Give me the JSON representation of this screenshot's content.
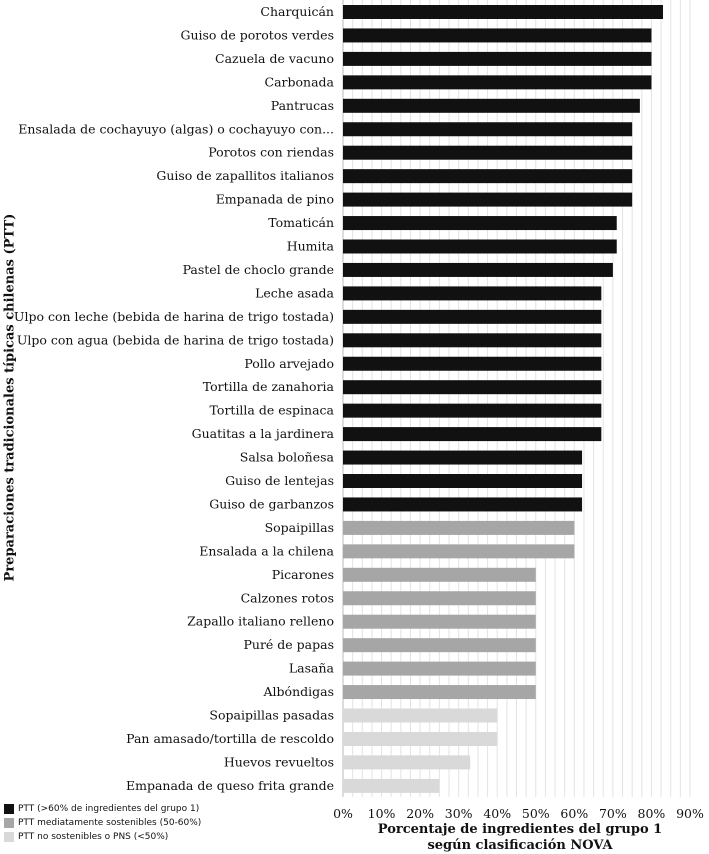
{
  "chart_data": {
    "type": "bar",
    "orientation": "horizontal",
    "categories": [
      "Charquicán",
      "Guiso de porotos verdes",
      "Cazuela de vacuno",
      "Carbonada",
      "Pantrucas",
      "Ensalada de cochayuyo (algas) o cochayuyo con...",
      "Porotos con riendas",
      "Guiso de zapallitos italianos",
      "Empanada de pino",
      "Tomaticán",
      "Humita",
      "Pastel de choclo grande",
      "Leche asada",
      "Ulpo con leche (bebida de harina de trigo tostada)",
      "Ulpo con agua (bebida de harina de trigo tostada)",
      "Pollo arvejado",
      "Tortilla de zanahoria",
      "Tortilla de espinaca",
      "Guatitas a la jardinera",
      "Salsa boloñesa",
      "Guiso de lentejas",
      "Guiso de garbanzos",
      "Sopaipillas",
      "Ensalada a la chilena",
      "Picarones",
      "Calzones rotos",
      "Zapallo italiano relleno",
      "Puré de papas",
      "Lasaña",
      "Albóndigas",
      "Sopaipillas pasadas",
      "Pan amasado/tortilla de rescoldo",
      "Huevos revueltos",
      "Empanada de queso frita grande"
    ],
    "values": [
      83,
      80,
      80,
      80,
      77,
      75,
      75,
      75,
      75,
      71,
      71,
      70,
      67,
      67,
      67,
      67,
      67,
      67,
      67,
      62,
      62,
      62,
      60,
      60,
      50,
      50,
      50,
      50,
      50,
      50,
      40,
      40,
      33,
      25
    ],
    "groups": [
      0,
      0,
      0,
      0,
      0,
      0,
      0,
      0,
      0,
      0,
      0,
      0,
      0,
      0,
      0,
      0,
      0,
      0,
      0,
      0,
      0,
      0,
      1,
      1,
      1,
      1,
      1,
      1,
      1,
      1,
      2,
      2,
      2,
      2
    ],
    "group_colors": [
      "#111111",
      "#a6a6a6",
      "#d9d9d9"
    ],
    "legend": [
      "PTT (>60% de ingredientes del grupo 1)",
      "PTT mediatamente sostenibles (50-60%)",
      "PTT no sostenibles o PNS (<50%)"
    ],
    "xticks": [
      "0%",
      "10%",
      "20%",
      "30%",
      "40%",
      "50%",
      "60%",
      "70%",
      "80%",
      "90%"
    ],
    "xlim": [
      0,
      90
    ],
    "xlabel": "Porcentaje de ingredientes del grupo 1\nsegún clasificación  NOVA",
    "ylabel": "Preparaciones tradicionales típicas chilenas (PTT)",
    "grid": "vertical minor lines",
    "legend_position": "bottom-left"
  }
}
